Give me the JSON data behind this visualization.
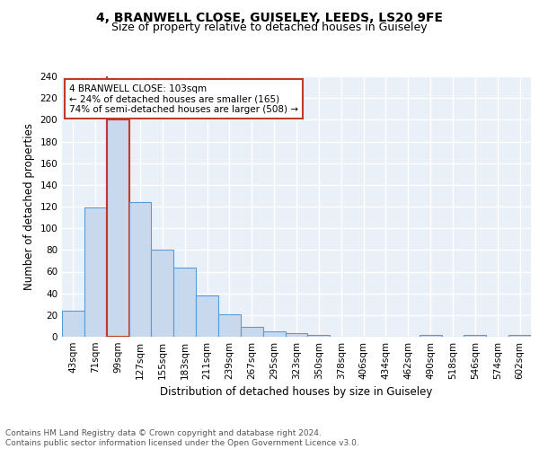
{
  "title1": "4, BRANWELL CLOSE, GUISELEY, LEEDS, LS20 9FE",
  "title2": "Size of property relative to detached houses in Guiseley",
  "xlabel": "Distribution of detached houses by size in Guiseley",
  "ylabel": "Number of detached properties",
  "bin_labels": [
    "43sqm",
    "71sqm",
    "99sqm",
    "127sqm",
    "155sqm",
    "183sqm",
    "211sqm",
    "239sqm",
    "267sqm",
    "295sqm",
    "323sqm",
    "350sqm",
    "378sqm",
    "406sqm",
    "434sqm",
    "462sqm",
    "490sqm",
    "518sqm",
    "546sqm",
    "574sqm",
    "602sqm"
  ],
  "bar_values": [
    24,
    119,
    200,
    124,
    80,
    64,
    38,
    21,
    9,
    5,
    3,
    2,
    0,
    0,
    0,
    0,
    2,
    0,
    2,
    0,
    2
  ],
  "bar_color": "#c8d9ed",
  "bar_edge_color": "#5b9bd5",
  "highlight_bar_index": 2,
  "highlight_edge_color": "#c0392b",
  "annotation_text": "4 BRANWELL CLOSE: 103sqm\n← 24% of detached houses are smaller (165)\n74% of semi-detached houses are larger (508) →",
  "annotation_box_color": "white",
  "annotation_box_edge_color": "#c0392b",
  "ylim": [
    0,
    240
  ],
  "yticks": [
    0,
    20,
    40,
    60,
    80,
    100,
    120,
    140,
    160,
    180,
    200,
    220,
    240
  ],
  "footnote": "Contains HM Land Registry data © Crown copyright and database right 2024.\nContains public sector information licensed under the Open Government Licence v3.0.",
  "background_color": "#eaf0f8",
  "grid_color": "white",
  "title1_fontsize": 10,
  "title2_fontsize": 9,
  "xlabel_fontsize": 8.5,
  "ylabel_fontsize": 8.5,
  "tick_fontsize": 7.5,
  "annotation_fontsize": 7.5,
  "footnote_fontsize": 6.5
}
